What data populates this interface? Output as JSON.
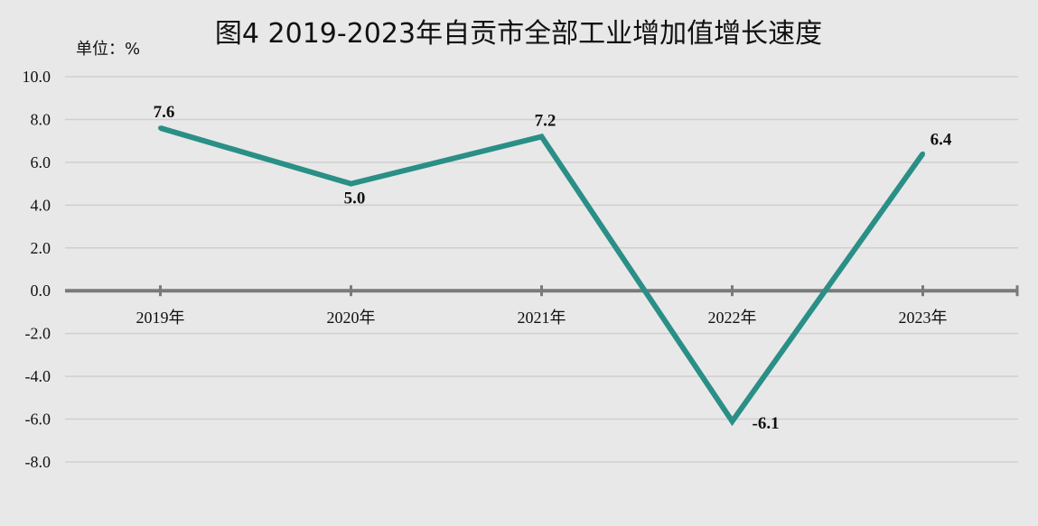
{
  "chart_data": {
    "type": "line",
    "title": "图4  2019-2023年自贡市全部工业增加值增长速度",
    "unit_label": "单位：%",
    "categories": [
      "2019年",
      "2020年",
      "2021年",
      "2022年",
      "2023年"
    ],
    "values": [
      7.6,
      5.0,
      7.2,
      -6.1,
      6.4
    ],
    "data_labels": [
      "7.6",
      "5.0",
      "7.2",
      "-6.1",
      "6.4"
    ],
    "yticks": [
      "10.0",
      "8.0",
      "6.0",
      "4.0",
      "2.0",
      "0.0",
      "-2.0",
      "-4.0",
      "-6.0",
      "-8.0"
    ],
    "ylim": [
      -8,
      10
    ],
    "grid": true,
    "legend": "none",
    "line_color": "#2a8f86"
  }
}
